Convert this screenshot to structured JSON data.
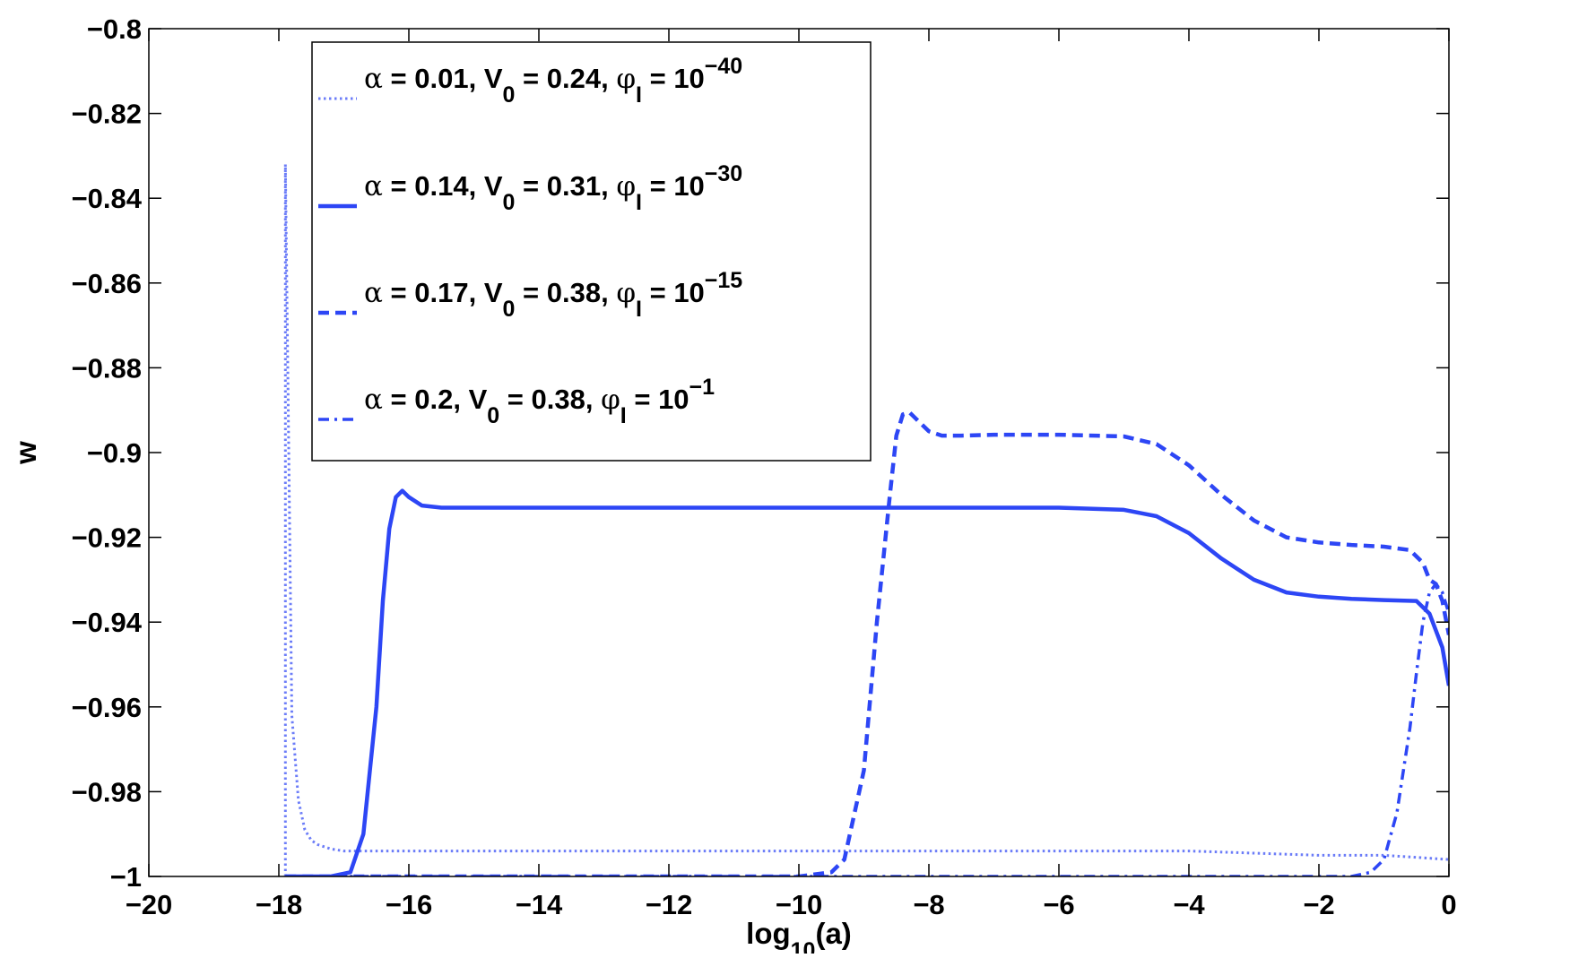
{
  "chart_data": {
    "type": "line",
    "xlabel": {
      "base": "log",
      "sub": "10",
      "rest": "(a)"
    },
    "ylabel": "w",
    "xlim": [
      -20,
      0
    ],
    "ylim": [
      -1,
      -0.8
    ],
    "xticks": [
      -20,
      -18,
      -16,
      -14,
      -12,
      -10,
      -8,
      -6,
      -4,
      -2,
      0
    ],
    "yticks": [
      -1,
      -0.98,
      -0.96,
      -0.94,
      -0.92,
      -0.9,
      -0.88,
      -0.86,
      -0.84,
      -0.82,
      -0.8
    ],
    "xtick_labels": [
      "−20",
      "−18",
      "−16",
      "−14",
      "−12",
      "−10",
      "−8",
      "−6",
      "−4",
      "−2",
      "0"
    ],
    "ytick_labels": [
      "−1",
      "−0.98",
      "−0.96",
      "−0.94",
      "−0.92",
      "−0.9",
      "−0.88",
      "−0.86",
      "−0.84",
      "−0.82",
      "−0.8"
    ],
    "grid": false,
    "legend_position": "top-left",
    "line_color": "#2d46f5",
    "series": [
      {
        "name": "α = 0.01, V0 = 0.24, φI = 10−40",
        "legend": {
          "alpha": "0.01",
          "V0": "0.24",
          "phiI_exp": "−40"
        },
        "style": "dotted",
        "x": [
          -17.9,
          -17.9,
          -17.8,
          -17.7,
          -17.6,
          -17.5,
          -17.4,
          -17.2,
          -17.0,
          -16.5,
          -15,
          -10,
          -8,
          -6,
          -4,
          -3,
          -2,
          -1,
          -0.5,
          0
        ],
        "y": [
          -1.0,
          -0.832,
          -0.962,
          -0.982,
          -0.989,
          -0.9915,
          -0.9925,
          -0.9935,
          -0.994,
          -0.994,
          -0.994,
          -0.994,
          -0.994,
          -0.994,
          -0.994,
          -0.9945,
          -0.995,
          -0.995,
          -0.9955,
          -0.996
        ]
      },
      {
        "name": "α = 0.14, V0 = 0.31, φI = 10−30",
        "legend": {
          "alpha": "0.14",
          "V0": "0.31",
          "phiI_exp": "−30"
        },
        "style": "solid",
        "x": [
          -17.9,
          -17.2,
          -16.9,
          -16.7,
          -16.5,
          -16.4,
          -16.3,
          -16.2,
          -16.1,
          -16.0,
          -15.8,
          -15.5,
          -15,
          -12,
          -8,
          -6,
          -5,
          -4.5,
          -4,
          -3.5,
          -3,
          -2.5,
          -2,
          -1.5,
          -1,
          -0.5,
          -0.3,
          -0.1,
          0
        ],
        "y": [
          -1.0,
          -1.0,
          -0.999,
          -0.99,
          -0.96,
          -0.935,
          -0.918,
          -0.9105,
          -0.909,
          -0.9105,
          -0.9125,
          -0.913,
          -0.913,
          -0.913,
          -0.913,
          -0.913,
          -0.9135,
          -0.915,
          -0.919,
          -0.925,
          -0.93,
          -0.933,
          -0.934,
          -0.9345,
          -0.9348,
          -0.935,
          -0.938,
          -0.946,
          -0.955
        ]
      },
      {
        "name": "α = 0.17, V0 = 0.38, φI = 10−15",
        "legend": {
          "alpha": "0.17",
          "V0": "0.38",
          "phiI_exp": "−15"
        },
        "style": "dashed",
        "x": [
          -17.9,
          -10,
          -9.5,
          -9.3,
          -9.0,
          -8.8,
          -8.6,
          -8.5,
          -8.4,
          -8.3,
          -8.2,
          -8.0,
          -7.8,
          -7.5,
          -7,
          -6,
          -5,
          -4.5,
          -4,
          -3.5,
          -3,
          -2.5,
          -2,
          -1.5,
          -1,
          -0.6,
          -0.4,
          -0.3,
          -0.2,
          -0.1,
          0
        ],
        "y": [
          -1.0,
          -1.0,
          -0.999,
          -0.996,
          -0.975,
          -0.94,
          -0.91,
          -0.896,
          -0.891,
          -0.8905,
          -0.892,
          -0.895,
          -0.896,
          -0.896,
          -0.8958,
          -0.8958,
          -0.8962,
          -0.898,
          -0.903,
          -0.91,
          -0.916,
          -0.92,
          -0.9212,
          -0.9218,
          -0.9222,
          -0.923,
          -0.926,
          -0.93,
          -0.931,
          -0.935,
          -0.943
        ]
      },
      {
        "name": "α = 0.2, V0 = 0.38, φI = 10−1",
        "legend": {
          "alpha": "0.2",
          "V0": "0.38",
          "phiI_exp": "−1"
        },
        "style": "dashdot",
        "x": [
          -17.9,
          -1.5,
          -1.2,
          -1.0,
          -0.8,
          -0.6,
          -0.5,
          -0.4,
          -0.3,
          -0.2,
          -0.1,
          0
        ],
        "y": [
          -1.0,
          -1.0,
          -0.999,
          -0.996,
          -0.985,
          -0.965,
          -0.952,
          -0.94,
          -0.933,
          -0.931,
          -0.933,
          -0.938
        ]
      }
    ]
  }
}
